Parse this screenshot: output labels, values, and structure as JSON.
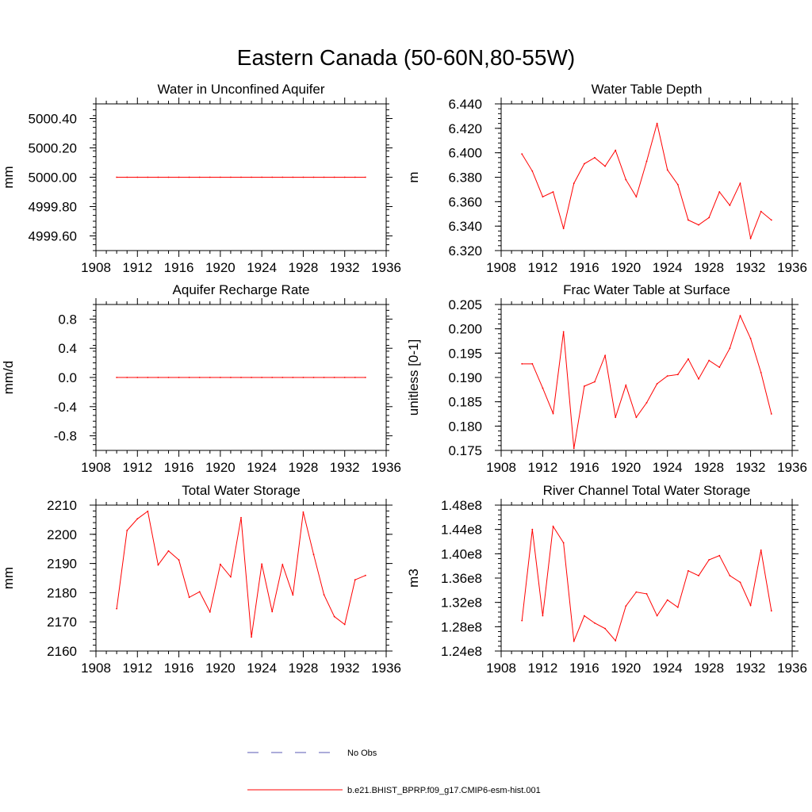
{
  "figure": {
    "title": "Eastern Canada (50-60N,80-55W)"
  },
  "colors": {
    "model_line": "#ff0000",
    "obs_line": "#5a5ab4",
    "axis": "#000000"
  },
  "chart_data": [
    {
      "type": "line",
      "title": "Water in Unconfined Aquifer",
      "ylabel": "mm",
      "xlim": [
        1908,
        1936
      ],
      "xticks": [
        "1908",
        "1912",
        "1916",
        "1920",
        "1924",
        "1928",
        "1932",
        "1936"
      ],
      "ylim": [
        4999.5,
        5000.5
      ],
      "yticks": [
        4999.6,
        4999.8,
        5000.0,
        5000.2,
        5000.4
      ],
      "yticklabels": [
        "4999.60",
        "4999.80",
        "5000.00",
        "5000.20",
        "5000.40"
      ],
      "x": [
        1910,
        1911,
        1912,
        1913,
        1914,
        1915,
        1916,
        1917,
        1918,
        1919,
        1920,
        1921,
        1922,
        1923,
        1924,
        1925,
        1926,
        1927,
        1928,
        1929,
        1930,
        1931,
        1932,
        1933,
        1934
      ],
      "series": [
        {
          "values": [
            5000,
            5000,
            5000,
            5000,
            5000,
            5000,
            5000,
            5000,
            5000,
            5000,
            5000,
            5000,
            5000,
            5000,
            5000,
            5000,
            5000,
            5000,
            5000,
            5000,
            5000,
            5000,
            5000,
            5000,
            5000
          ]
        }
      ]
    },
    {
      "type": "line",
      "title": "Water Table Depth",
      "ylabel": "m",
      "xlim": [
        1908,
        1936
      ],
      "xticks": [
        "1908",
        "1912",
        "1916",
        "1920",
        "1924",
        "1928",
        "1932",
        "1936"
      ],
      "ylim": [
        6.32,
        6.44
      ],
      "yticks": [
        6.32,
        6.34,
        6.36,
        6.38,
        6.4,
        6.42,
        6.44
      ],
      "yticklabels": [
        "6.320",
        "6.340",
        "6.360",
        "6.380",
        "6.400",
        "6.420",
        "6.440"
      ],
      "x": [
        1910,
        1911,
        1912,
        1913,
        1914,
        1915,
        1916,
        1917,
        1918,
        1919,
        1920,
        1921,
        1922,
        1923,
        1924,
        1925,
        1926,
        1927,
        1928,
        1929,
        1930,
        1931,
        1932,
        1933,
        1934
      ],
      "series": [
        {
          "values": [
            6.399,
            6.385,
            6.364,
            6.368,
            6.338,
            6.375,
            6.391,
            6.396,
            6.389,
            6.402,
            6.378,
            6.364,
            6.393,
            6.424,
            6.386,
            6.374,
            6.345,
            6.341,
            6.347,
            6.368,
            6.357,
            6.375,
            6.33,
            6.352,
            6.345
          ]
        }
      ]
    },
    {
      "type": "line",
      "title": "Aquifer Recharge Rate",
      "ylabel": "mm/d",
      "xlim": [
        1908,
        1936
      ],
      "xticks": [
        "1908",
        "1912",
        "1916",
        "1920",
        "1924",
        "1928",
        "1932",
        "1936"
      ],
      "ylim": [
        -1.0,
        1.0
      ],
      "yticks": [
        -0.8,
        -0.4,
        0.0,
        0.4,
        0.8
      ],
      "yticklabels": [
        "-0.8",
        "-0.4",
        "0.0",
        "0.4",
        "0.8"
      ],
      "x": [
        1910,
        1911,
        1912,
        1913,
        1914,
        1915,
        1916,
        1917,
        1918,
        1919,
        1920,
        1921,
        1922,
        1923,
        1924,
        1925,
        1926,
        1927,
        1928,
        1929,
        1930,
        1931,
        1932,
        1933,
        1934
      ],
      "series": [
        {
          "values": [
            0,
            0,
            0,
            0,
            0,
            0,
            0,
            0,
            0,
            0,
            0,
            0,
            0,
            0,
            0,
            0,
            0,
            0,
            0,
            0,
            0,
            0,
            0,
            0,
            0
          ]
        }
      ]
    },
    {
      "type": "line",
      "title": "Frac Water Table at Surface",
      "ylabel": "unitless [0-1]",
      "xlim": [
        1908,
        1936
      ],
      "xticks": [
        "1908",
        "1912",
        "1916",
        "1920",
        "1924",
        "1928",
        "1932",
        "1936"
      ],
      "ylim": [
        0.175,
        0.205
      ],
      "yticks": [
        0.175,
        0.18,
        0.185,
        0.19,
        0.195,
        0.2,
        0.205
      ],
      "yticklabels": [
        "0.175",
        "0.180",
        "0.185",
        "0.190",
        "0.195",
        "0.200",
        "0.205"
      ],
      "x": [
        1910,
        1911,
        1912,
        1913,
        1914,
        1915,
        1916,
        1917,
        1918,
        1919,
        1920,
        1921,
        1922,
        1923,
        1924,
        1925,
        1926,
        1927,
        1928,
        1929,
        1930,
        1931,
        1932,
        1933,
        1934
      ],
      "series": [
        {
          "values": [
            0.1928,
            0.1928,
            0.1878,
            0.1826,
            0.1994,
            0.1754,
            0.1882,
            0.1891,
            0.1945,
            0.1818,
            0.1884,
            0.1818,
            0.1848,
            0.1887,
            0.1903,
            0.1906,
            0.1938,
            0.1897,
            0.1935,
            0.1921,
            0.196,
            0.2027,
            0.198,
            0.191,
            0.1825
          ]
        }
      ]
    },
    {
      "type": "line",
      "title": "Total Water Storage",
      "ylabel": "mm",
      "xlim": [
        1908,
        1936
      ],
      "xticks": [
        "1908",
        "1912",
        "1916",
        "1920",
        "1924",
        "1928",
        "1932",
        "1936"
      ],
      "ylim": [
        2160,
        2210
      ],
      "yticks": [
        2160,
        2170,
        2180,
        2190,
        2200,
        2210
      ],
      "yticklabels": [
        "2160",
        "2170",
        "2180",
        "2190",
        "2200",
        "2210"
      ],
      "x": [
        1910,
        1911,
        1912,
        1913,
        1914,
        1915,
        1916,
        1917,
        1918,
        1919,
        1920,
        1921,
        1922,
        1923,
        1924,
        1925,
        1926,
        1927,
        1928,
        1929,
        1930,
        1931,
        1932,
        1933,
        1934
      ],
      "series": [
        {
          "values": [
            2174.5,
            2201.3,
            2205.3,
            2207.9,
            2189.5,
            2194.3,
            2191.2,
            2178.4,
            2180.3,
            2173.4,
            2189.7,
            2185.4,
            2205.7,
            2164.8,
            2189.8,
            2173.5,
            2189.6,
            2179.2,
            2207.6,
            2193.1,
            2179.3,
            2171.8,
            2169.1,
            2184.4,
            2185.9
          ]
        }
      ]
    },
    {
      "type": "line",
      "title": "River Channel Total Water Storage",
      "ylabel": "m3",
      "xlim": [
        1908,
        1936
      ],
      "xticks": [
        "1908",
        "1912",
        "1916",
        "1920",
        "1924",
        "1928",
        "1932",
        "1936"
      ],
      "ylim": [
        124000000,
        148000000
      ],
      "yticks": [
        124000000,
        128000000,
        132000000,
        136000000,
        140000000,
        144000000,
        148000000
      ],
      "yticklabels": [
        "1.24e8",
        "1.28e8",
        "1.32e8",
        "1.36e8",
        "1.40e8",
        "1.44e8",
        "1.48e8"
      ],
      "x": [
        1910,
        1911,
        1912,
        1913,
        1914,
        1915,
        1916,
        1917,
        1918,
        1919,
        1920,
        1921,
        1922,
        1923,
        1924,
        1925,
        1926,
        1927,
        1928,
        1929,
        1930,
        1931,
        1932,
        1933,
        1934
      ],
      "series": [
        {
          "values": [
            129000000,
            144000000,
            129800000,
            144500000,
            141800000,
            125600000,
            129800000,
            128600000,
            127700000,
            125700000,
            131400000,
            133700000,
            133400000,
            129800000,
            132400000,
            131200000,
            137200000,
            136400000,
            139000000,
            139700000,
            136400000,
            135300000,
            131500000,
            140600000,
            130600000
          ]
        }
      ]
    }
  ],
  "legend": {
    "items": [
      {
        "label": "No Obs",
        "style": "dashed"
      },
      {
        "label": "b.e21.BHIST_BPRP.f09_g17.CMIP6-esm-hist.001",
        "style": "solid"
      }
    ]
  }
}
